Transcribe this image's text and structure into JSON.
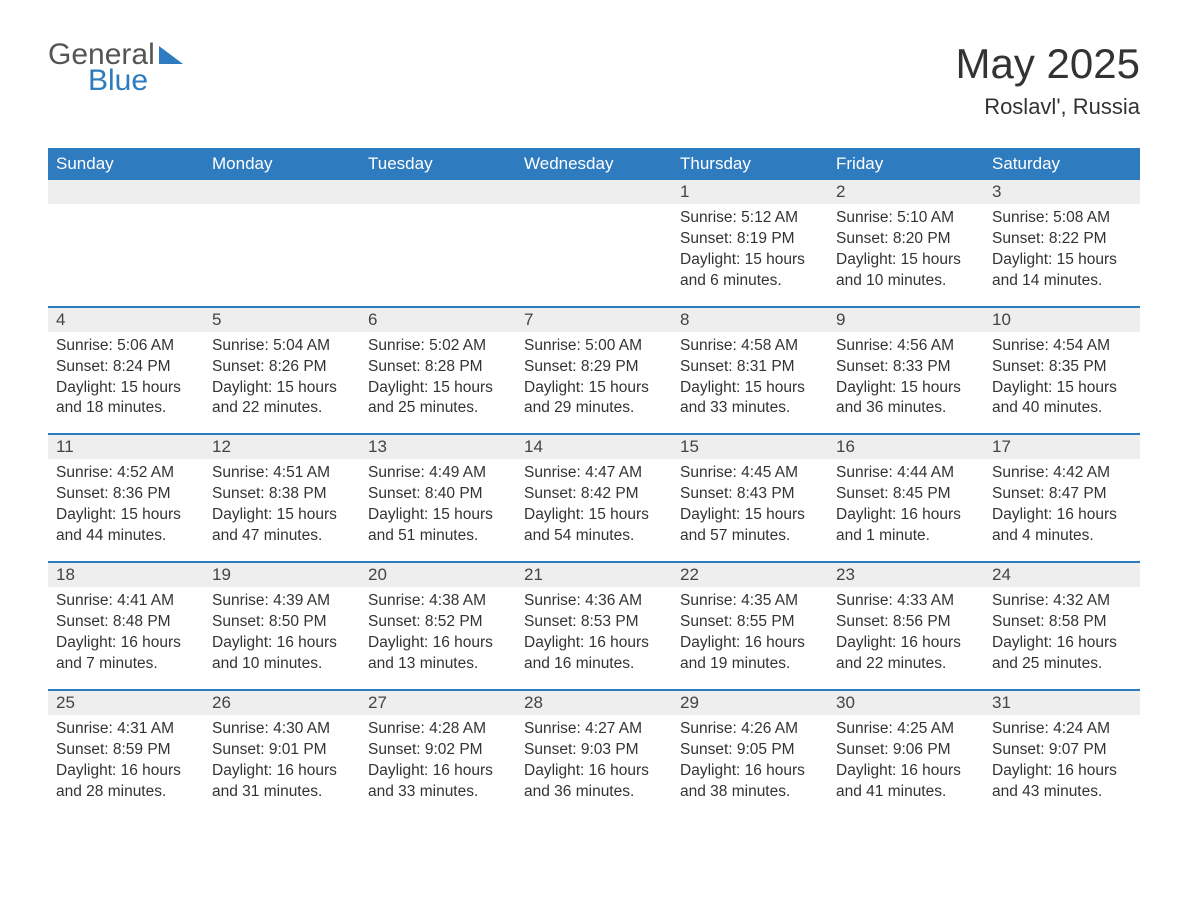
{
  "logo": {
    "general": "General",
    "blue": "Blue"
  },
  "title": {
    "month": "May 2025",
    "location": "Roslavl', Russia"
  },
  "colors": {
    "header_bg": "#2f7bbf",
    "header_text": "#ffffff",
    "daynum_bg": "#eeeeee",
    "row_divider": "#2f7bbf",
    "body_text": "#333333",
    "page_bg": "#ffffff"
  },
  "weekdays": [
    "Sunday",
    "Monday",
    "Tuesday",
    "Wednesday",
    "Thursday",
    "Friday",
    "Saturday"
  ],
  "weeks": [
    [
      null,
      null,
      null,
      null,
      {
        "n": "1",
        "sunrise": "5:12 AM",
        "sunset": "8:19 PM",
        "daylight": "15 hours and 6 minutes."
      },
      {
        "n": "2",
        "sunrise": "5:10 AM",
        "sunset": "8:20 PM",
        "daylight": "15 hours and 10 minutes."
      },
      {
        "n": "3",
        "sunrise": "5:08 AM",
        "sunset": "8:22 PM",
        "daylight": "15 hours and 14 minutes."
      }
    ],
    [
      {
        "n": "4",
        "sunrise": "5:06 AM",
        "sunset": "8:24 PM",
        "daylight": "15 hours and 18 minutes."
      },
      {
        "n": "5",
        "sunrise": "5:04 AM",
        "sunset": "8:26 PM",
        "daylight": "15 hours and 22 minutes."
      },
      {
        "n": "6",
        "sunrise": "5:02 AM",
        "sunset": "8:28 PM",
        "daylight": "15 hours and 25 minutes."
      },
      {
        "n": "7",
        "sunrise": "5:00 AM",
        "sunset": "8:29 PM",
        "daylight": "15 hours and 29 minutes."
      },
      {
        "n": "8",
        "sunrise": "4:58 AM",
        "sunset": "8:31 PM",
        "daylight": "15 hours and 33 minutes."
      },
      {
        "n": "9",
        "sunrise": "4:56 AM",
        "sunset": "8:33 PM",
        "daylight": "15 hours and 36 minutes."
      },
      {
        "n": "10",
        "sunrise": "4:54 AM",
        "sunset": "8:35 PM",
        "daylight": "15 hours and 40 minutes."
      }
    ],
    [
      {
        "n": "11",
        "sunrise": "4:52 AM",
        "sunset": "8:36 PM",
        "daylight": "15 hours and 44 minutes."
      },
      {
        "n": "12",
        "sunrise": "4:51 AM",
        "sunset": "8:38 PM",
        "daylight": "15 hours and 47 minutes."
      },
      {
        "n": "13",
        "sunrise": "4:49 AM",
        "sunset": "8:40 PM",
        "daylight": "15 hours and 51 minutes."
      },
      {
        "n": "14",
        "sunrise": "4:47 AM",
        "sunset": "8:42 PM",
        "daylight": "15 hours and 54 minutes."
      },
      {
        "n": "15",
        "sunrise": "4:45 AM",
        "sunset": "8:43 PM",
        "daylight": "15 hours and 57 minutes."
      },
      {
        "n": "16",
        "sunrise": "4:44 AM",
        "sunset": "8:45 PM",
        "daylight": "16 hours and 1 minute."
      },
      {
        "n": "17",
        "sunrise": "4:42 AM",
        "sunset": "8:47 PM",
        "daylight": "16 hours and 4 minutes."
      }
    ],
    [
      {
        "n": "18",
        "sunrise": "4:41 AM",
        "sunset": "8:48 PM",
        "daylight": "16 hours and 7 minutes."
      },
      {
        "n": "19",
        "sunrise": "4:39 AM",
        "sunset": "8:50 PM",
        "daylight": "16 hours and 10 minutes."
      },
      {
        "n": "20",
        "sunrise": "4:38 AM",
        "sunset": "8:52 PM",
        "daylight": "16 hours and 13 minutes."
      },
      {
        "n": "21",
        "sunrise": "4:36 AM",
        "sunset": "8:53 PM",
        "daylight": "16 hours and 16 minutes."
      },
      {
        "n": "22",
        "sunrise": "4:35 AM",
        "sunset": "8:55 PM",
        "daylight": "16 hours and 19 minutes."
      },
      {
        "n": "23",
        "sunrise": "4:33 AM",
        "sunset": "8:56 PM",
        "daylight": "16 hours and 22 minutes."
      },
      {
        "n": "24",
        "sunrise": "4:32 AM",
        "sunset": "8:58 PM",
        "daylight": "16 hours and 25 minutes."
      }
    ],
    [
      {
        "n": "25",
        "sunrise": "4:31 AM",
        "sunset": "8:59 PM",
        "daylight": "16 hours and 28 minutes."
      },
      {
        "n": "26",
        "sunrise": "4:30 AM",
        "sunset": "9:01 PM",
        "daylight": "16 hours and 31 minutes."
      },
      {
        "n": "27",
        "sunrise": "4:28 AM",
        "sunset": "9:02 PM",
        "daylight": "16 hours and 33 minutes."
      },
      {
        "n": "28",
        "sunrise": "4:27 AM",
        "sunset": "9:03 PM",
        "daylight": "16 hours and 36 minutes."
      },
      {
        "n": "29",
        "sunrise": "4:26 AM",
        "sunset": "9:05 PM",
        "daylight": "16 hours and 38 minutes."
      },
      {
        "n": "30",
        "sunrise": "4:25 AM",
        "sunset": "9:06 PM",
        "daylight": "16 hours and 41 minutes."
      },
      {
        "n": "31",
        "sunrise": "4:24 AM",
        "sunset": "9:07 PM",
        "daylight": "16 hours and 43 minutes."
      }
    ]
  ],
  "labels": {
    "sunrise": "Sunrise: ",
    "sunset": "Sunset: ",
    "daylight": "Daylight: "
  }
}
